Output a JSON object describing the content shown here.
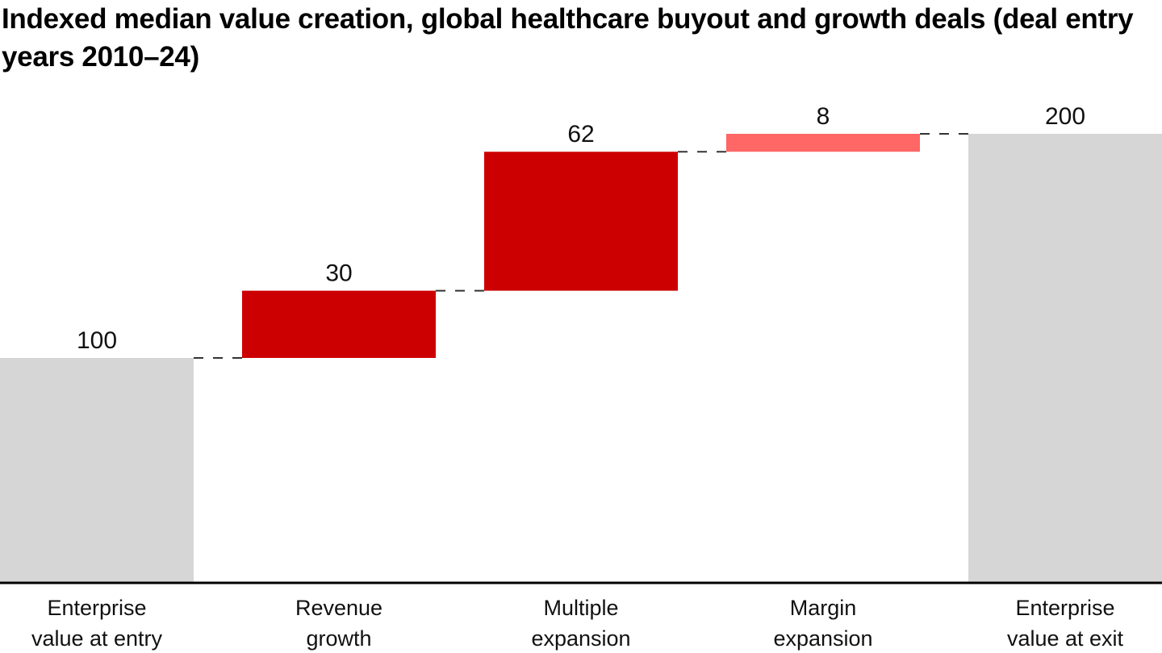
{
  "chart_data": {
    "type": "waterfall",
    "title": "Indexed median value creation, global healthcare buyout and growth deals (deal entry years 2010–24)",
    "xlabel": "",
    "ylabel": "",
    "ylim": [
      0,
      200
    ],
    "grid": false,
    "legend": "none",
    "categories": [
      [
        "Enterprise",
        "value at entry"
      ],
      [
        "Revenue",
        "growth"
      ],
      [
        "Multiple",
        "expansion"
      ],
      [
        "Margin",
        "expansion"
      ],
      [
        "Enterprise",
        "value at exit"
      ]
    ],
    "bars": [
      {
        "kind": "total",
        "value": 100,
        "label": "100",
        "color": "#d6d6d6"
      },
      {
        "kind": "delta",
        "value": 30,
        "label": "30",
        "color": "#cc0000"
      },
      {
        "kind": "delta",
        "value": 62,
        "label": "62",
        "color": "#cc0000"
      },
      {
        "kind": "delta",
        "value": 8,
        "label": "8",
        "color": "#ff6666"
      },
      {
        "kind": "total",
        "value": 200,
        "label": "200",
        "color": "#d6d6d6"
      }
    ],
    "connector_color": "#333333",
    "axis_color": "#000000"
  }
}
